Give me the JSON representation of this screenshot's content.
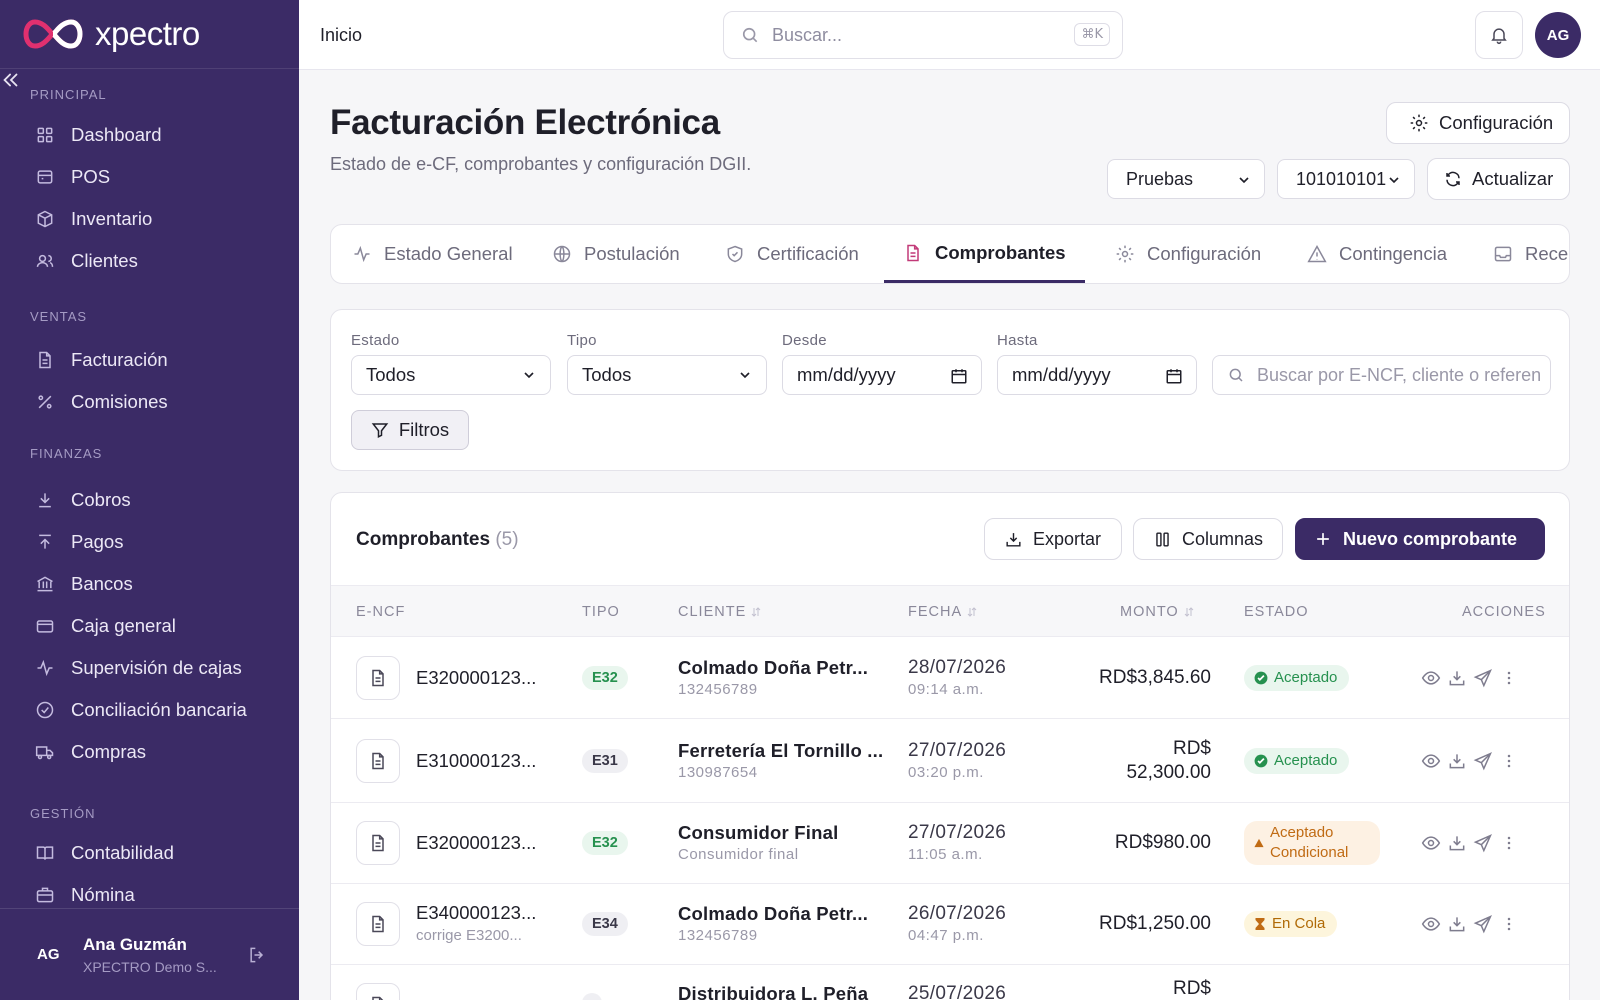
{
  "brand": {
    "name": "xpectro"
  },
  "sidebar": {
    "sections": [
      {
        "title": "PRINCIPAL",
        "items": [
          "Dashboard",
          "POS",
          "Inventario",
          "Clientes"
        ]
      },
      {
        "title": "VENTAS",
        "items": [
          "Facturación",
          "Comisiones"
        ]
      },
      {
        "title": "FINANZAS",
        "items": [
          "Cobros",
          "Pagos",
          "Bancos",
          "Caja general",
          "Supervisión de cajas",
          "Conciliación bancaria",
          "Compras"
        ]
      },
      {
        "title": "GESTIÓN",
        "items": [
          "Contabilidad",
          "Nómina"
        ]
      }
    ],
    "user": {
      "initials": "AG",
      "name": "Ana Guzmán",
      "org": "XPECTRO Demo S..."
    }
  },
  "topbar": {
    "breadcrumb": "Inicio",
    "search_placeholder": "Buscar...",
    "shortcut": "⌘K",
    "avatar": "AG"
  },
  "page": {
    "title": "Facturación Electrónica",
    "subtitle": "Estado de e-CF, comprobantes y configuración DGII.",
    "config_button": "Configuración",
    "environment": "Pruebas",
    "rnc": "101010101",
    "refresh_button": "Actualizar"
  },
  "tabs": [
    {
      "label": "Estado General",
      "icon": "activity-icon"
    },
    {
      "label": "Postulación",
      "icon": "globe-icon"
    },
    {
      "label": "Certificación",
      "icon": "shield-icon"
    },
    {
      "label": "Comprobantes",
      "icon": "document-icon",
      "active": true
    },
    {
      "label": "Configuración",
      "icon": "gear-icon"
    },
    {
      "label": "Contingencia",
      "icon": "warning-icon"
    },
    {
      "label": "Recep",
      "icon": "inbox-icon"
    }
  ],
  "filters": {
    "estado_label": "Estado",
    "estado_value": "Todos",
    "tipo_label": "Tipo",
    "tipo_value": "Todos",
    "desde_label": "Desde",
    "desde_value": "mm/dd/yyyy",
    "hasta_label": "Hasta",
    "hasta_value": "mm/dd/yyyy",
    "search_placeholder": "Buscar por E-NCF, cliente o referen",
    "filter_button": "Filtros"
  },
  "table": {
    "title": "Comprobantes",
    "count": "(5)",
    "export_button": "Exportar",
    "columns_button": "Columnas",
    "new_button": "Nuevo comprobante",
    "headers": [
      "E-NCF",
      "TIPO",
      "CLIENTE",
      "FECHA",
      "MONTO",
      "ESTADO",
      "ACCIONES"
    ],
    "rows": [
      {
        "encf": "E320000123...",
        "sub": "",
        "tipo": "E32",
        "cliente": "Colmado Doña Petr...",
        "rnc": "132456789",
        "fecha": "28/07/2026",
        "hora": "09:14 a.m.",
        "monto": "RD$3,845.60",
        "estado": "Aceptado"
      },
      {
        "encf": "E310000123...",
        "sub": "",
        "tipo": "E31",
        "cliente": "Ferretería El Tornillo ...",
        "rnc": "130987654",
        "fecha": "27/07/2026",
        "hora": "03:20 p.m.",
        "monto_l1": "RD$",
        "monto_l2": "52,300.00",
        "estado": "Aceptado"
      },
      {
        "encf": "E320000123...",
        "sub": "",
        "tipo": "E32",
        "cliente": "Consumidor Final",
        "rnc": "Consumidor final",
        "fecha": "27/07/2026",
        "hora": "11:05 a.m.",
        "monto": "RD$980.00",
        "estado_l1": "Aceptado",
        "estado_l2": "Condicional"
      },
      {
        "encf": "E340000123...",
        "sub": "corrige E3200...",
        "tipo": "E34",
        "cliente": "Colmado Doña Petr...",
        "rnc": "132456789",
        "fecha": "26/07/2026",
        "hora": "04:47 p.m.",
        "monto": "RD$1,250.00",
        "estado": "En Cola"
      },
      {
        "cliente": "Distribuidora L. Peña",
        "fecha": "25/07/2026",
        "monto": "RD$"
      }
    ]
  },
  "colors": {
    "sidebar": "#3b2b66",
    "accent": "#3b2b66",
    "success": "#26914f",
    "warning": "#c06b14",
    "brand_pink": "#e0306f"
  }
}
